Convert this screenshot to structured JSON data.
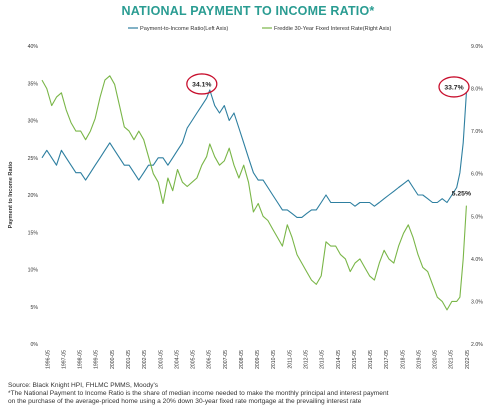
{
  "title": "NATIONAL PAYMENT TO INCOME RATIO*",
  "footnotes": {
    "source": "Source: Black Knight HPI, FHLMC PMMS, Moody's",
    "note_line1": "*The National Payment to Income Ratio is the share of median income needed to make the monthly principal and interest payment",
    "note_line2": "on the purchase of the average-priced home using a 20% down 30-year fixed rate mortgage at the prevailing interest rate"
  },
  "chart_data": {
    "type": "line",
    "ylabel": "Payment to Income Ratio",
    "left_axis": {
      "min": 0,
      "max": 40,
      "ticks": [
        "0%",
        "5%",
        "10%",
        "15%",
        "20%",
        "25%",
        "30%",
        "35%",
        "40%"
      ]
    },
    "right_axis": {
      "min": 2,
      "max": 9,
      "ticks": [
        "2.0%",
        "3.0%",
        "4.0%",
        "5.0%",
        "6.0%",
        "7.0%",
        "8.0%",
        "9.0%"
      ]
    },
    "x_range": [
      1996,
      2022.4
    ],
    "x_ticks": [
      "1996-05",
      "1997-05",
      "1998-05",
      "1999-05",
      "2000-05",
      "2001-05",
      "2002-05",
      "2003-05",
      "2004-05",
      "2005-05",
      "2006-05",
      "2007-05",
      "2008-05",
      "2009-05",
      "2010-05",
      "2011-05",
      "2012-05",
      "2013-05",
      "2014-05",
      "2015-05",
      "2016-05",
      "2017-05",
      "2018-05",
      "2019-05",
      "2020-05",
      "2021-05",
      "2022-05"
    ],
    "legend_placement": "top",
    "series": [
      {
        "name": "Payment-to-Income Ratio(Left Axis)",
        "axis": "left",
        "color": "#2e7fa0",
        "x": [
          1996.0,
          1996.3,
          1996.6,
          1996.9,
          1997.2,
          1997.5,
          1997.8,
          1998.1,
          1998.4,
          1998.7,
          1999.0,
          1999.3,
          1999.6,
          1999.9,
          2000.2,
          2000.5,
          2000.8,
          2001.1,
          2001.4,
          2001.7,
          2002.0,
          2002.3,
          2002.6,
          2002.9,
          2003.2,
          2003.5,
          2003.8,
          2004.1,
          2004.4,
          2004.7,
          2005.0,
          2005.3,
          2005.6,
          2005.9,
          2006.2,
          2006.4,
          2006.7,
          2007.0,
          2007.3,
          2007.6,
          2007.9,
          2008.2,
          2008.5,
          2008.8,
          2009.1,
          2009.4,
          2009.7,
          2010.0,
          2010.3,
          2010.6,
          2010.9,
          2011.2,
          2011.5,
          2011.8,
          2012.1,
          2012.4,
          2012.7,
          2013.0,
          2013.3,
          2013.6,
          2013.9,
          2014.2,
          2014.5,
          2014.8,
          2015.1,
          2015.4,
          2015.7,
          2016.0,
          2016.3,
          2016.6,
          2016.9,
          2017.2,
          2017.5,
          2017.8,
          2018.1,
          2018.4,
          2018.7,
          2019.0,
          2019.3,
          2019.6,
          2019.9,
          2020.2,
          2020.5,
          2020.8,
          2021.1,
          2021.4,
          2021.7,
          2021.9,
          2022.1,
          2022.3
        ],
        "values": [
          25,
          26,
          25,
          24,
          26,
          25,
          24,
          23,
          23,
          22,
          23,
          24,
          25,
          26,
          27,
          26,
          25,
          24,
          24,
          23,
          22,
          23,
          24,
          24,
          25,
          25,
          24,
          25,
          26,
          27,
          29,
          30,
          31,
          32,
          33,
          34.1,
          32,
          31,
          32,
          30,
          31,
          29,
          27,
          25,
          23,
          22,
          22,
          21,
          20,
          19,
          18,
          18,
          17.5,
          17,
          17,
          17.5,
          18,
          18,
          19,
          20,
          19,
          19,
          19,
          19,
          19,
          18.5,
          19,
          19,
          19,
          18.5,
          19,
          19.5,
          20,
          20.5,
          21,
          21.5,
          22,
          21,
          20,
          20,
          19.5,
          19,
          19,
          19.5,
          19,
          20,
          21,
          23,
          27,
          33.7
        ]
      },
      {
        "name": "Freddie 30-Year Fixed Interest Rate(Right Axis)",
        "axis": "right",
        "color": "#7ab648",
        "x": [
          1996.0,
          1996.3,
          1996.6,
          1996.9,
          1997.2,
          1997.5,
          1997.8,
          1998.1,
          1998.4,
          1998.7,
          1999.0,
          1999.3,
          1999.6,
          1999.9,
          2000.2,
          2000.5,
          2000.8,
          2001.1,
          2001.4,
          2001.7,
          2002.0,
          2002.3,
          2002.6,
          2002.9,
          2003.2,
          2003.5,
          2003.8,
          2004.1,
          2004.4,
          2004.7,
          2005.0,
          2005.3,
          2005.6,
          2005.9,
          2006.2,
          2006.4,
          2006.7,
          2007.0,
          2007.3,
          2007.6,
          2007.9,
          2008.2,
          2008.5,
          2008.8,
          2009.1,
          2009.4,
          2009.7,
          2010.0,
          2010.3,
          2010.6,
          2010.9,
          2011.2,
          2011.5,
          2011.8,
          2012.1,
          2012.4,
          2012.7,
          2013.0,
          2013.3,
          2013.6,
          2013.9,
          2014.2,
          2014.5,
          2014.8,
          2015.1,
          2015.4,
          2015.7,
          2016.0,
          2016.3,
          2016.6,
          2016.9,
          2017.2,
          2017.5,
          2017.8,
          2018.1,
          2018.4,
          2018.7,
          2019.0,
          2019.3,
          2019.6,
          2019.9,
          2020.2,
          2020.5,
          2020.8,
          2021.1,
          2021.4,
          2021.7,
          2021.9,
          2022.1,
          2022.3
        ],
        "values": [
          8.2,
          8.0,
          7.6,
          7.8,
          7.9,
          7.5,
          7.2,
          7.0,
          7.0,
          6.8,
          7.0,
          7.3,
          7.8,
          8.2,
          8.3,
          8.1,
          7.6,
          7.1,
          7.0,
          6.8,
          7.0,
          6.8,
          6.4,
          6.0,
          5.8,
          5.3,
          5.9,
          5.6,
          6.1,
          5.8,
          5.7,
          5.8,
          5.9,
          6.2,
          6.4,
          6.7,
          6.4,
          6.2,
          6.3,
          6.6,
          6.2,
          5.9,
          6.2,
          5.8,
          5.1,
          5.3,
          5.0,
          4.9,
          4.7,
          4.5,
          4.3,
          4.8,
          4.5,
          4.1,
          3.9,
          3.7,
          3.5,
          3.4,
          3.6,
          4.4,
          4.3,
          4.3,
          4.1,
          4.0,
          3.7,
          3.9,
          4.0,
          3.8,
          3.6,
          3.5,
          3.9,
          4.2,
          4.0,
          3.9,
          4.3,
          4.6,
          4.8,
          4.5,
          4.1,
          3.8,
          3.7,
          3.4,
          3.1,
          3.0,
          2.8,
          3.0,
          3.0,
          3.1,
          4.0,
          5.25
        ]
      }
    ],
    "annotations": [
      {
        "label": "34.1%",
        "x": 2006.4,
        "axis": "left",
        "value": 34.1,
        "circled": true
      },
      {
        "label": "33.7%",
        "x": 2022.3,
        "axis": "left",
        "value": 33.7,
        "circled": true
      },
      {
        "label": "5.25%",
        "x": 2022.3,
        "axis": "right",
        "value": 5.25,
        "circled": false
      }
    ]
  }
}
